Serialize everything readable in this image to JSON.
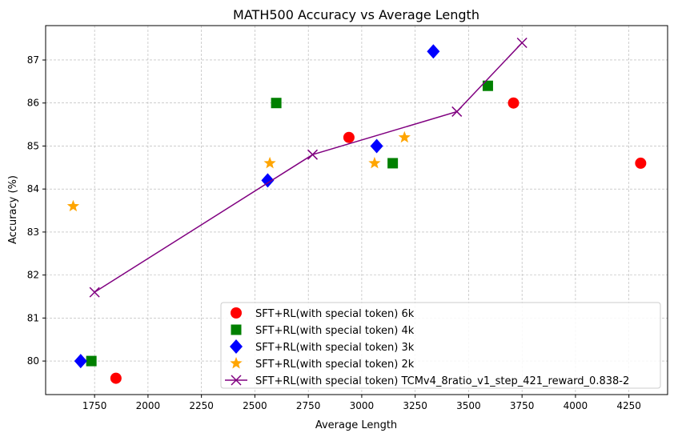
{
  "chart_data": {
    "type": "scatter",
    "title": "MATH500 Accuracy vs Average Length",
    "xlabel": "Average Length",
    "ylabel": "Accuracy (%)",
    "xlim": [
      1521,
      4431
    ],
    "ylim": [
      79.22,
      87.8
    ],
    "xticks": [
      1750,
      2000,
      2250,
      2500,
      2750,
      3000,
      3250,
      3500,
      3750,
      4000,
      4250
    ],
    "yticks": [
      80,
      81,
      82,
      83,
      84,
      85,
      86,
      87
    ],
    "grid": true,
    "legend_position": "lower-right",
    "series": [
      {
        "name": "SFT+RL(with special token) 6k",
        "marker": "circle",
        "color": "#ff0000",
        "line": false,
        "points": [
          [
            1850,
            79.6
          ],
          [
            2940,
            85.2
          ],
          [
            3710,
            86.0
          ],
          [
            4305,
            84.6
          ]
        ]
      },
      {
        "name": "SFT+RL(with special token) 4k",
        "marker": "square",
        "color": "#008000",
        "line": false,
        "points": [
          [
            1735,
            80.0
          ],
          [
            2600,
            86.0
          ],
          [
            3145,
            84.6
          ],
          [
            3590,
            86.4
          ]
        ]
      },
      {
        "name": "SFT+RL(with special token) 3k",
        "marker": "diamond",
        "color": "#0000ff",
        "line": false,
        "points": [
          [
            1685,
            80.0
          ],
          [
            2560,
            84.2
          ],
          [
            3070,
            85.0
          ],
          [
            3335,
            87.2
          ]
        ]
      },
      {
        "name": "SFT+RL(with special token) 2k",
        "marker": "star",
        "color": "#ffa500",
        "line": false,
        "points": [
          [
            1650,
            83.6
          ],
          [
            2570,
            84.6
          ],
          [
            3060,
            84.6
          ],
          [
            3200,
            85.2
          ]
        ]
      },
      {
        "name": "SFT+RL(with special token) TCMv4_8ratio_v1_step_421_reward_0.838-2",
        "marker": "x",
        "color": "#800080",
        "line": true,
        "points": [
          [
            1750,
            81.6
          ],
          [
            2770,
            84.8
          ],
          [
            3445,
            85.8
          ],
          [
            3750,
            87.4
          ]
        ]
      }
    ]
  }
}
